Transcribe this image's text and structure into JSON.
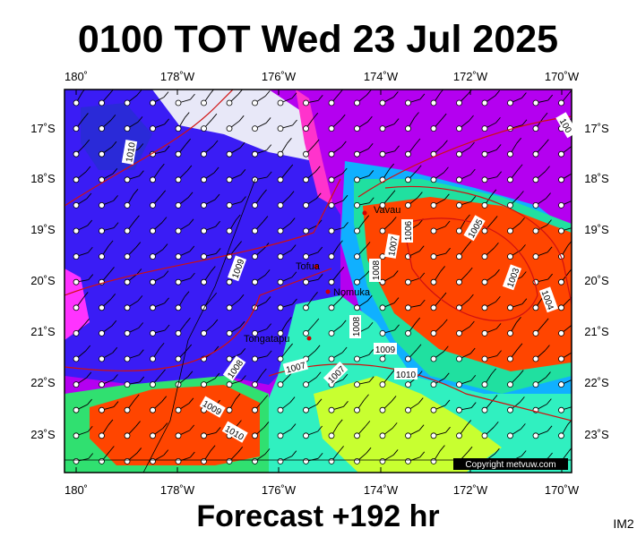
{
  "title": "0100 TOT Wed 23 Jul 2025",
  "footer": "Forecast +192 hr",
  "copyright": "Copyright metvuw.com",
  "corner_label": "IM2",
  "lon_labels": [
    "180˚",
    "178˚W",
    "176˚W",
    "174˚W",
    "172˚W",
    "170˚W"
  ],
  "lat_labels": [
    "17˚S",
    "18˚S",
    "19˚S",
    "20˚S",
    "21˚S",
    "22˚S",
    "23˚S"
  ],
  "places": [
    "Vavau",
    "Tofua",
    "Nomuka",
    "Tongatapu"
  ],
  "isobar_labels": [
    "1010",
    "1009",
    "1008",
    "1009",
    "1010",
    "1007",
    "1007",
    "1008",
    "1009",
    "1010",
    "1008",
    "1007",
    "1006",
    "1005",
    "1003",
    "1004",
    "100"
  ]
}
